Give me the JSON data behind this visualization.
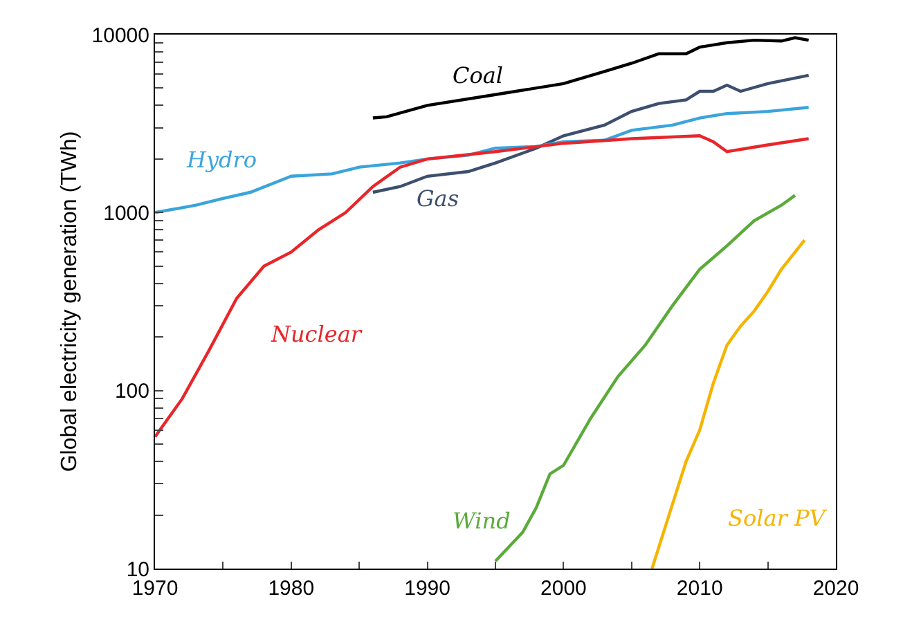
{
  "chart_data": {
    "type": "line",
    "ylabel": "Global electricity generation (TWh)",
    "log": "y",
    "legend": false,
    "marker": "none",
    "line_style": "solid",
    "xlim": [
      1970,
      2020
    ],
    "xticks": [
      1970,
      {
        "value": 1975,
        "label": null
      },
      1980,
      {
        "value": 1985,
        "label": null
      },
      1990,
      {
        "value": 1995,
        "label": null
      },
      2000,
      {
        "value": 2005,
        "label": null
      },
      2010,
      {
        "value": 2015,
        "label": null
      },
      2020
    ],
    "ylim": [
      10,
      10000
    ],
    "yticks": [
      10,
      {
        "value": 20,
        "label": null
      },
      {
        "value": 30,
        "label": null
      },
      {
        "value": 40,
        "label": null
      },
      {
        "value": 50,
        "label": null
      },
      {
        "value": 60,
        "label": null
      },
      {
        "value": 70,
        "label": null
      },
      {
        "value": 80,
        "label": null
      },
      {
        "value": 90,
        "label": null
      },
      100,
      {
        "value": 200,
        "label": null
      },
      {
        "value": 300,
        "label": null
      },
      {
        "value": 400,
        "label": null
      },
      {
        "value": 500,
        "label": null
      },
      {
        "value": 600,
        "label": null
      },
      {
        "value": 700,
        "label": null
      },
      {
        "value": 800,
        "label": null
      },
      {
        "value": 900,
        "label": null
      },
      1000,
      {
        "value": 2000,
        "label": null
      },
      {
        "value": 3000,
        "label": null
      },
      {
        "value": 4000,
        "label": null
      },
      {
        "value": 5000,
        "label": null
      },
      {
        "value": 6000,
        "label": null
      },
      {
        "value": 7000,
        "label": null
      },
      {
        "value": 8000,
        "label": null
      },
      {
        "value": 9000,
        "label": null
      },
      10000
    ],
    "series": [
      {
        "name": "Coal",
        "color": "#000000",
        "x": [
          1986,
          1987,
          1990,
          1995,
          2000,
          2003,
          2005,
          2007,
          2009,
          2010,
          2012,
          2014,
          2016,
          2017,
          2018
        ],
        "values": [
          3400,
          3450,
          4000,
          4600,
          5300,
          6200,
          6900,
          7800,
          7800,
          8500,
          9000,
          9300,
          9200,
          9600,
          9300
        ]
      },
      {
        "name": "Gas",
        "color": "#3d4f6e",
        "x": [
          1986,
          1988,
          1990,
          1993,
          1995,
          1998,
          2000,
          2003,
          2005,
          2007,
          2009,
          2010,
          2011,
          2012,
          2013,
          2015,
          2018
        ],
        "values": [
          1300,
          1400,
          1600,
          1700,
          1900,
          2300,
          2700,
          3100,
          3700,
          4100,
          4300,
          4800,
          4800,
          5200,
          4800,
          5300,
          5900
        ]
      },
      {
        "name": "Hydro",
        "color": "#3aa4dc",
        "x": [
          1970,
          1973,
          1975,
          1977,
          1980,
          1983,
          1985,
          1988,
          1990,
          1993,
          1995,
          1998,
          2000,
          2003,
          2005,
          2008,
          2010,
          2012,
          2015,
          2018
        ],
        "values": [
          1000,
          1100,
          1200,
          1300,
          1600,
          1650,
          1800,
          1900,
          2000,
          2100,
          2300,
          2350,
          2500,
          2550,
          2900,
          3100,
          3400,
          3600,
          3700,
          3900
        ]
      },
      {
        "name": "Nuclear",
        "color": "#e8262a",
        "x": [
          1970,
          1972,
          1974,
          1976,
          1978,
          1980,
          1982,
          1984,
          1986,
          1988,
          1990,
          1995,
          2000,
          2005,
          2010,
          2011,
          2012,
          2015,
          2018
        ],
        "values": [
          55,
          90,
          170,
          330,
          500,
          600,
          800,
          1000,
          1400,
          1800,
          2000,
          2200,
          2450,
          2600,
          2700,
          2500,
          2200,
          2400,
          2600
        ]
      },
      {
        "name": "Wind",
        "color": "#5aab3a",
        "x": [
          1995,
          1997,
          1998,
          1999,
          2000,
          2002,
          2004,
          2006,
          2008,
          2010,
          2012,
          2014,
          2016,
          2017
        ],
        "values": [
          11,
          16,
          22,
          34,
          38,
          70,
          120,
          180,
          300,
          480,
          650,
          900,
          1100,
          1250
        ]
      },
      {
        "name": "Solar PV",
        "color": "#f5b400",
        "x": [
          2006.5,
          2008,
          2009,
          2010,
          2011,
          2012,
          2013,
          2014,
          2015,
          2016,
          2017.7
        ],
        "values": [
          10,
          23,
          40,
          60,
          110,
          180,
          230,
          280,
          360,
          480,
          700
        ]
      }
    ]
  }
}
